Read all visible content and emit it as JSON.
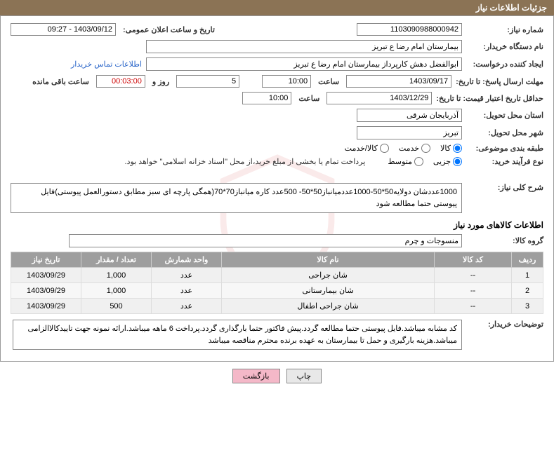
{
  "header": {
    "title": "جزئیات اطلاعات نیاز"
  },
  "fields": {
    "need_no_label": "شماره نیاز:",
    "need_no": "1103090988000942",
    "announce_date_label": "تاریخ و ساعت اعلان عمومی:",
    "announce_date": "1403/09/12 - 09:27",
    "buyer_org_label": "نام دستگاه خریدار:",
    "buyer_org": "بیمارستان امام رضا  ع  تبریز",
    "request_creator_label": "ایجاد کننده درخواست:",
    "request_creator": "ابوالفضل دهش کارپرداز بیمارستان امام رضا  ع  تبریز",
    "contact_link": "اطلاعات تماس خریدار",
    "deadline_label": "مهلت ارسال پاسخ: تا تاریخ:",
    "deadline_date": "1403/09/17",
    "time_label": "ساعت",
    "deadline_time": "10:00",
    "days_field": "5",
    "days_and": "روز و",
    "remain_time": "00:03:00",
    "remain_label": "ساعت باقی مانده",
    "validity_label": "حداقل تاریخ اعتبار قیمت: تا تاریخ:",
    "validity_date": "1403/12/29",
    "validity_time": "10:00",
    "province_label": "استان محل تحویل:",
    "province": "آذربایجان شرقی",
    "city_label": "شهر محل تحویل:",
    "city": "تبریز",
    "category_label": "طبقه بندی موضوعی:",
    "buy_type_label": "نوع فرآیند خرید:",
    "payment_note": "پرداخت تمام یا بخشی از مبلغ خرید،از محل \"اسناد خزانه اسلامی\" خواهد بود.",
    "desc_label": "شرح کلی نیاز:",
    "desc_text": "1000عددشان دولایه50*50-1000عددمیانباز50*50- 500عدد کاره میانباز70*70(همگی پارچه ای سبز مطابق دستورالعمل پیوستی)فایل پیوستی حتما مطالعه شود",
    "section_goods": "اطلاعات کالاهای مورد نیاز",
    "goods_group_label": "گروه کالا:",
    "goods_group": "منسوجات و چرم",
    "buyer_notes_label": "توضیحات خریدار:",
    "buyer_notes": "کد مشابه میباشد.فایل پیوستی حتما مطالعه گردد.پیش فاکتور حتما بارگذاری گردد.پرداخت 6 ماهه میباشد.ارائه نمونه جهت تاییدکالاالزامی میباشد.هزینه بارگیری و حمل تا بیمارستان به عهده برنده محترم مناقصه میباشد"
  },
  "radios": {
    "category": [
      {
        "label": "کالا",
        "checked": true
      },
      {
        "label": "خدمت",
        "checked": false
      },
      {
        "label": "کالا/خدمت",
        "checked": false
      }
    ],
    "buy_type": [
      {
        "label": "جزیی",
        "checked": true
      },
      {
        "label": "متوسط",
        "checked": false
      }
    ]
  },
  "table": {
    "headers": {
      "row": "ردیف",
      "code": "کد کالا",
      "name": "نام کالا",
      "unit": "واحد شمارش",
      "qty": "تعداد / مقدار",
      "date": "تاریخ نیاز"
    },
    "rows": [
      {
        "n": "1",
        "code": "--",
        "name": "شان جراحی",
        "unit": "عدد",
        "qty": "1,000",
        "date": "1403/09/29"
      },
      {
        "n": "2",
        "code": "--",
        "name": "شان بیمارستانی",
        "unit": "عدد",
        "qty": "1,000",
        "date": "1403/09/29"
      },
      {
        "n": "3",
        "code": "--",
        "name": "شان جراحی اطفال",
        "unit": "عدد",
        "qty": "500",
        "date": "1403/09/29"
      }
    ]
  },
  "buttons": {
    "print": "چاپ",
    "back": "بازگشت"
  }
}
